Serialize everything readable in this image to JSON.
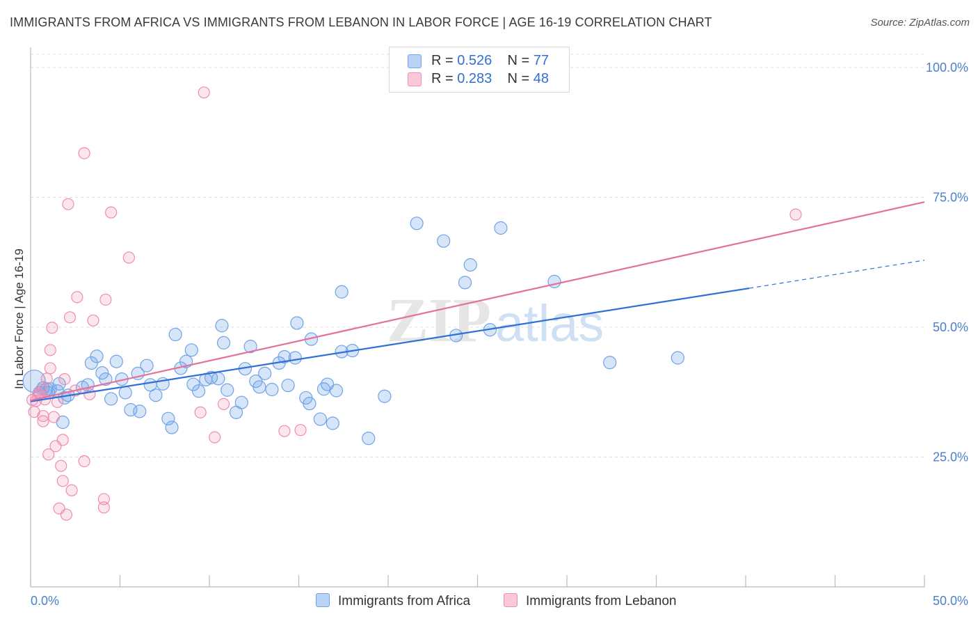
{
  "title": "IMMIGRANTS FROM AFRICA VS IMMIGRANTS FROM LEBANON IN LABOR FORCE | AGE 16-19 CORRELATION CHART",
  "source": "Source: ZipAtlas.com",
  "watermark": {
    "zip": "ZIP",
    "atlas": "atlas"
  },
  "legend": {
    "r_label": "R =",
    "n_label": "N =",
    "africa": {
      "r": "0.526",
      "n": "77"
    },
    "lebanon": {
      "r": "0.283",
      "n": "48"
    }
  },
  "chart_data": {
    "type": "scatter",
    "title": "IMMIGRANTS FROM AFRICA VS IMMIGRANTS FROM LEBANON IN LABOR FORCE | AGE 16-19 CORRELATION CHART",
    "xlabel": "",
    "ylabel": "In Labor Force | Age 16-19",
    "xlim": [
      0,
      50
    ],
    "ylim": [
      0,
      100
    ],
    "x_tick_labels": [
      "0.0%",
      "50.0%"
    ],
    "y_ticks": [
      {
        "value": 100,
        "label": "100.0%"
      },
      {
        "value": 75,
        "label": "75.0%"
      },
      {
        "value": 50,
        "label": "50.0%"
      },
      {
        "value": 25,
        "label": "25.0%"
      }
    ],
    "colors": {
      "africa": "#6fa3e6",
      "lebanon": "#f08bb0",
      "africa_line": "#2f6fd6",
      "lebanon_line": "#e5709a"
    },
    "series": [
      {
        "name": "Immigrants from Africa",
        "points": [
          [
            0.2,
            39.6,
            16
          ],
          [
            0.5,
            37.4,
            9
          ],
          [
            0.7,
            38.3,
            9
          ],
          [
            0.9,
            38.1,
            9
          ],
          [
            1.0,
            37.4,
            9
          ],
          [
            1.1,
            38.1,
            9
          ],
          [
            1.5,
            37.7,
            9
          ],
          [
            1.6,
            39.1,
            9
          ],
          [
            1.8,
            31.7,
            9
          ],
          [
            1.9,
            36.4,
            9
          ],
          [
            2.1,
            36.9,
            9
          ],
          [
            2.9,
            38.4,
            9
          ],
          [
            3.2,
            38.9,
            9
          ],
          [
            3.4,
            43.1,
            9
          ],
          [
            3.7,
            44.4,
            9
          ],
          [
            4.0,
            41.2,
            9
          ],
          [
            4.2,
            40.0,
            9
          ],
          [
            4.5,
            36.2,
            9
          ],
          [
            4.8,
            43.4,
            9
          ],
          [
            5.1,
            40.0,
            9
          ],
          [
            5.3,
            37.4,
            9
          ],
          [
            5.6,
            34.1,
            9
          ],
          [
            6.0,
            41.1,
            9
          ],
          [
            6.1,
            33.8,
            9
          ],
          [
            6.5,
            42.6,
            9
          ],
          [
            6.7,
            38.9,
            9
          ],
          [
            7.0,
            36.9,
            9
          ],
          [
            7.4,
            39.1,
            9
          ],
          [
            7.7,
            32.4,
            9
          ],
          [
            7.9,
            30.7,
            9
          ],
          [
            8.1,
            48.6,
            9
          ],
          [
            8.4,
            42.1,
            9
          ],
          [
            8.7,
            43.4,
            9
          ],
          [
            9.0,
            45.6,
            9
          ],
          [
            9.1,
            39.0,
            9
          ],
          [
            9.4,
            37.7,
            9
          ],
          [
            9.8,
            39.9,
            9
          ],
          [
            10.1,
            40.3,
            9
          ],
          [
            10.5,
            40.1,
            9
          ],
          [
            10.7,
            50.3,
            9
          ],
          [
            10.8,
            47.0,
            9
          ],
          [
            11.0,
            37.9,
            9
          ],
          [
            11.5,
            33.6,
            9
          ],
          [
            11.8,
            35.5,
            9
          ],
          [
            12.0,
            42.0,
            9
          ],
          [
            12.3,
            46.3,
            9
          ],
          [
            12.6,
            39.6,
            9
          ],
          [
            12.8,
            38.5,
            9
          ],
          [
            13.1,
            41.1,
            9
          ],
          [
            13.5,
            38.0,
            9
          ],
          [
            13.9,
            43.1,
            9
          ],
          [
            14.2,
            44.3,
            9
          ],
          [
            14.4,
            38.8,
            9
          ],
          [
            14.8,
            44.1,
            9
          ],
          [
            14.9,
            50.8,
            9
          ],
          [
            15.4,
            36.4,
            9
          ],
          [
            15.6,
            35.3,
            9
          ],
          [
            15.7,
            47.7,
            9
          ],
          [
            16.2,
            32.3,
            9
          ],
          [
            16.4,
            38.1,
            9
          ],
          [
            16.6,
            39.0,
            9
          ],
          [
            16.9,
            31.5,
            9
          ],
          [
            17.1,
            37.8,
            9
          ],
          [
            17.4,
            45.3,
            9
          ],
          [
            17.4,
            56.8,
            9
          ],
          [
            18.0,
            45.5,
            9
          ],
          [
            18.9,
            28.6,
            9
          ],
          [
            19.8,
            36.7,
            9
          ],
          [
            21.6,
            70.0,
            9
          ],
          [
            23.1,
            66.6,
            9
          ],
          [
            23.8,
            48.4,
            9
          ],
          [
            24.3,
            58.6,
            9
          ],
          [
            24.6,
            62.0,
            9
          ],
          [
            25.7,
            49.5,
            9
          ],
          [
            26.3,
            69.1,
            9
          ],
          [
            29.3,
            58.8,
            9
          ],
          [
            32.4,
            43.2,
            9
          ],
          [
            36.2,
            44.1,
            9
          ]
        ]
      },
      {
        "name": "Immigrants from Lebanon",
        "points": [
          [
            0.1,
            36.0,
            8
          ],
          [
            0.2,
            33.7,
            8
          ],
          [
            0.3,
            35.8,
            8
          ],
          [
            0.4,
            36.9,
            8
          ],
          [
            0.5,
            37.1,
            8
          ],
          [
            0.6,
            38.0,
            8
          ],
          [
            0.7,
            31.9,
            8
          ],
          [
            0.7,
            32.9,
            8
          ],
          [
            0.8,
            36.1,
            8
          ],
          [
            0.9,
            40.1,
            8
          ],
          [
            1.0,
            25.5,
            8
          ],
          [
            1.1,
            42.1,
            8
          ],
          [
            1.1,
            45.6,
            8
          ],
          [
            1.2,
            49.9,
            8
          ],
          [
            1.3,
            32.7,
            8
          ],
          [
            1.4,
            27.1,
            8
          ],
          [
            1.5,
            35.6,
            8
          ],
          [
            1.6,
            15.1,
            8
          ],
          [
            1.7,
            23.3,
            8
          ],
          [
            1.8,
            28.3,
            8
          ],
          [
            1.8,
            20.4,
            8
          ],
          [
            1.9,
            40.0,
            8
          ],
          [
            2.0,
            13.9,
            8
          ],
          [
            2.1,
            73.7,
            8
          ],
          [
            2.2,
            51.9,
            8
          ],
          [
            2.3,
            18.6,
            8
          ],
          [
            2.5,
            37.8,
            8
          ],
          [
            2.6,
            55.8,
            8
          ],
          [
            3.0,
            24.2,
            8
          ],
          [
            3.0,
            83.5,
            8
          ],
          [
            3.3,
            37.1,
            8
          ],
          [
            3.5,
            51.3,
            8
          ],
          [
            4.1,
            16.9,
            8
          ],
          [
            4.1,
            15.3,
            8
          ],
          [
            4.2,
            55.3,
            8
          ],
          [
            4.5,
            72.1,
            8
          ],
          [
            5.5,
            63.4,
            8
          ],
          [
            9.5,
            33.6,
            8
          ],
          [
            9.7,
            95.2,
            8
          ],
          [
            10.3,
            28.8,
            8
          ],
          [
            10.8,
            35.2,
            8
          ],
          [
            14.2,
            30.0,
            8
          ],
          [
            15.1,
            30.2,
            8
          ],
          [
            42.8,
            71.7,
            8
          ]
        ]
      }
    ],
    "trend_lines": [
      {
        "name": "Immigrants from Africa",
        "from": [
          0,
          35.7
        ],
        "to": [
          40.2,
          57.5
        ],
        "dashed_to": [
          50,
          62.9
        ]
      },
      {
        "name": "Immigrants from Lebanon",
        "from": [
          0,
          35.9
        ],
        "to": [
          50,
          74.1
        ]
      }
    ],
    "legend_position": "top-center"
  },
  "bottom_legend": {
    "africa": "Immigrants from Africa",
    "lebanon": "Immigrants from Lebanon"
  }
}
